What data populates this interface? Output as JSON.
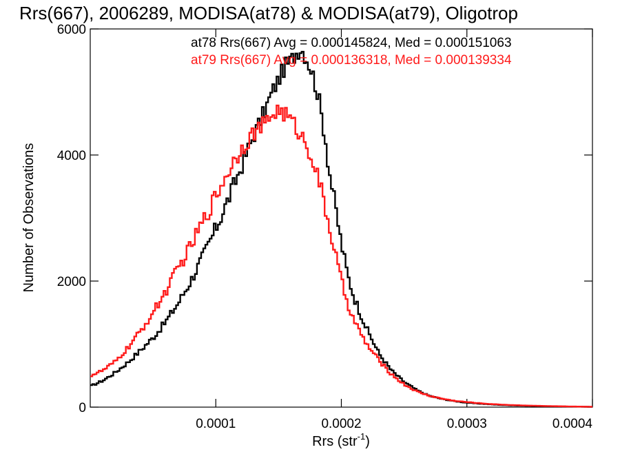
{
  "chart_data": {
    "type": "line",
    "style": "histogram-step",
    "title": "Rrs(667), 2006289, MODISA(at78) & MODISA(at79), Oligotrop",
    "xlabel": "Rrs (str",
    "xlabel_sup": "-1",
    "xlabel_end": ")",
    "ylabel": "Number of Observations",
    "xlim": [
      0.0,
      0.0004
    ],
    "ylim": [
      0,
      6000
    ],
    "x_ticks": [
      0.0001,
      0.0002,
      0.0003,
      0.0004
    ],
    "x_tick_labels": [
      "0.0001",
      "0.0002",
      "0.0003",
      "0.0004"
    ],
    "y_ticks": [
      0,
      2000,
      4000,
      6000
    ],
    "y_tick_labels": [
      "0",
      "2000",
      "4000",
      "6000"
    ],
    "grid": false,
    "annotations": [
      {
        "text": "at78 Rrs(667) Avg = 0.000145824, Med = 0.000151063",
        "color": "#000000"
      },
      {
        "text": "at79 Rrs(667) Avg = 0.000136318, Med = 0.000139334",
        "color": "#ff1a1a"
      }
    ],
    "series": [
      {
        "name": "at78",
        "color": "#000000",
        "points": [
          [
            0.0,
            330
          ],
          [
            1e-05,
            420
          ],
          [
            2e-05,
            550
          ],
          [
            3e-05,
            710
          ],
          [
            4e-05,
            900
          ],
          [
            5e-05,
            1100
          ],
          [
            6e-05,
            1350
          ],
          [
            7e-05,
            1650
          ],
          [
            8e-05,
            2000
          ],
          [
            9e-05,
            2400
          ],
          [
            0.0001,
            2830
          ],
          [
            0.00011,
            3300
          ],
          [
            0.00012,
            3800
          ],
          [
            0.00013,
            4300
          ],
          [
            0.000138,
            4650
          ],
          [
            0.000145,
            5000
          ],
          [
            0.00015,
            5200
          ],
          [
            0.000155,
            5400
          ],
          [
            0.00016,
            5500
          ],
          [
            0.000165,
            5650
          ],
          [
            0.000168,
            5700
          ],
          [
            0.000172,
            5550
          ],
          [
            0.000177,
            5300
          ],
          [
            0.000182,
            4900
          ],
          [
            0.000187,
            4300
          ],
          [
            0.00019,
            3800
          ],
          [
            0.000195,
            3200
          ],
          [
            0.0002,
            2600
          ],
          [
            0.000205,
            2100
          ],
          [
            0.00021,
            1750
          ],
          [
            0.000215,
            1500
          ],
          [
            0.00022,
            1250
          ],
          [
            0.00023,
            850
          ],
          [
            0.00024,
            580
          ],
          [
            0.00025,
            400
          ],
          [
            0.00026,
            270
          ],
          [
            0.00027,
            180
          ],
          [
            0.00028,
            130
          ],
          [
            0.00029,
            95
          ],
          [
            0.0003,
            70
          ],
          [
            0.00031,
            55
          ],
          [
            0.00032,
            42
          ],
          [
            0.00033,
            32
          ],
          [
            0.00034,
            25
          ],
          [
            0.00035,
            20
          ],
          [
            0.00036,
            16
          ],
          [
            0.00037,
            12
          ],
          [
            0.00038,
            9
          ],
          [
            0.00039,
            7
          ],
          [
            0.0004,
            5
          ]
        ]
      },
      {
        "name": "at79",
        "color": "#ff1a1a",
        "points": [
          [
            0.0,
            500
          ],
          [
            1e-05,
            580
          ],
          [
            2e-05,
            720
          ],
          [
            3e-05,
            940
          ],
          [
            4e-05,
            1200
          ],
          [
            5e-05,
            1500
          ],
          [
            6e-05,
            1830
          ],
          [
            7e-05,
            2200
          ],
          [
            8e-05,
            2550
          ],
          [
            9e-05,
            2950
          ],
          [
            0.0001,
            3350
          ],
          [
            0.00011,
            3750
          ],
          [
            0.00012,
            4100
          ],
          [
            0.00013,
            4350
          ],
          [
            0.00014,
            4500
          ],
          [
            0.000145,
            4650
          ],
          [
            0.00015,
            4720
          ],
          [
            0.000155,
            4650
          ],
          [
            0.00016,
            4550
          ],
          [
            0.000165,
            4400
          ],
          [
            0.00017,
            4250
          ],
          [
            0.000175,
            4050
          ],
          [
            0.00018,
            3750
          ],
          [
            0.000185,
            3350
          ],
          [
            0.00019,
            2900
          ],
          [
            0.000195,
            2450
          ],
          [
            0.0002,
            2000
          ],
          [
            0.000205,
            1650
          ],
          [
            0.00021,
            1380
          ],
          [
            0.000215,
            1180
          ],
          [
            0.00022,
            1000
          ],
          [
            0.00023,
            740
          ],
          [
            0.00024,
            520
          ],
          [
            0.00025,
            360
          ],
          [
            0.00026,
            250
          ],
          [
            0.00027,
            180
          ],
          [
            0.00028,
            135
          ],
          [
            0.00029,
            100
          ],
          [
            0.0003,
            80
          ],
          [
            0.00031,
            62
          ],
          [
            0.00032,
            48
          ],
          [
            0.00033,
            38
          ],
          [
            0.00034,
            30
          ],
          [
            0.00035,
            24
          ],
          [
            0.00036,
            19
          ],
          [
            0.00037,
            15
          ],
          [
            0.00038,
            11
          ],
          [
            0.00039,
            8
          ],
          [
            0.0004,
            6
          ]
        ]
      }
    ]
  }
}
